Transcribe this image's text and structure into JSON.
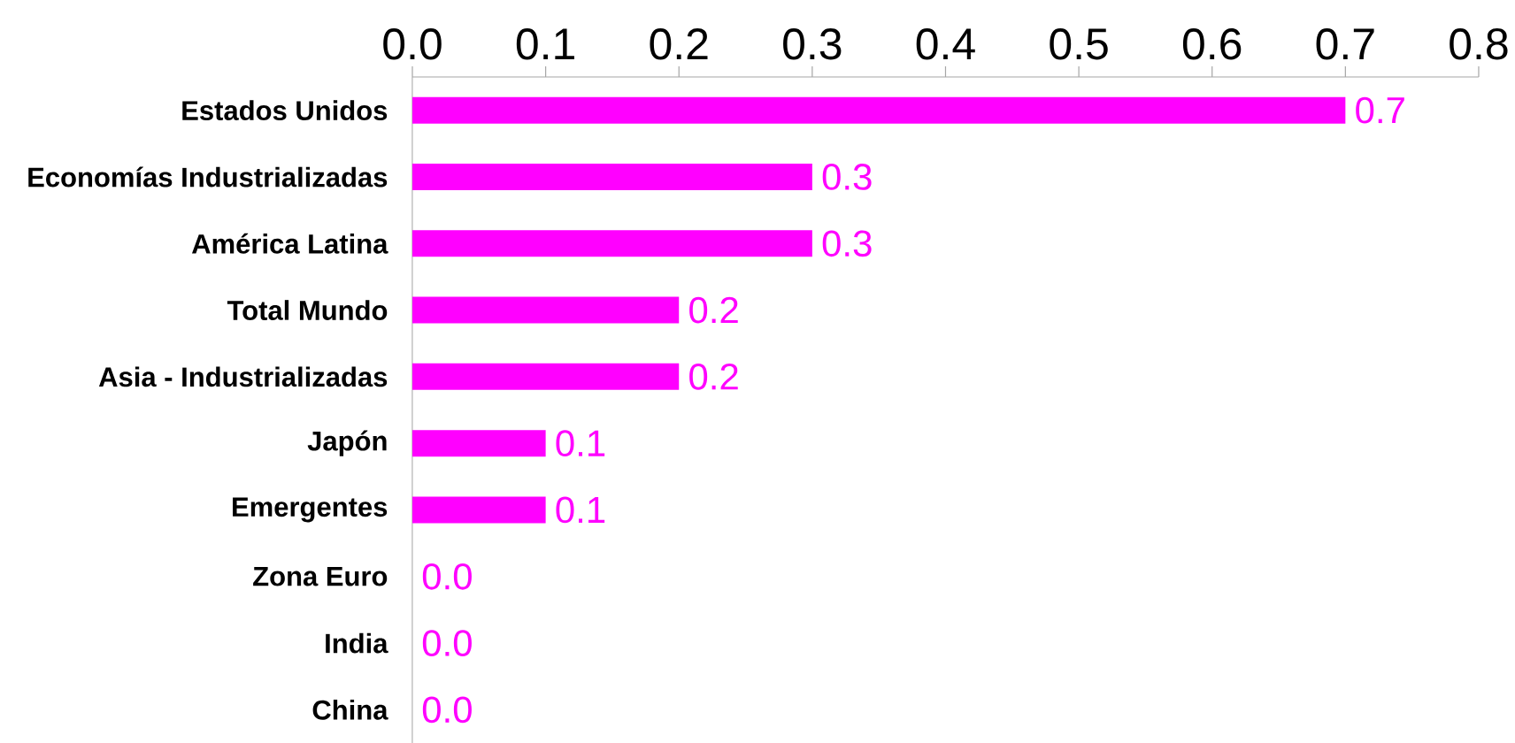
{
  "chart_data": {
    "type": "bar",
    "orientation": "horizontal",
    "categories": [
      "Estados Unidos",
      "Economías Industrializadas",
      "América Latina",
      "Total Mundo",
      "Asia - Industrializadas",
      "Japón",
      "Emergentes",
      "Zona Euro",
      "India",
      "China"
    ],
    "values": [
      0.7,
      0.3,
      0.3,
      0.2,
      0.2,
      0.1,
      0.1,
      0.0,
      0.0,
      0.0
    ],
    "value_labels": [
      "0.7",
      "0.3",
      "0.3",
      "0.2",
      "0.2",
      "0.1",
      "0.1",
      "0.0",
      "0.0",
      "0.0"
    ],
    "color": "#ff00ff",
    "xlim": [
      0,
      0.8
    ],
    "xticks": [
      {
        "value": 0,
        "label": "0.0"
      },
      {
        "value": 0.1,
        "label": "0.1"
      },
      {
        "value": 0.2,
        "label": "0.2"
      },
      {
        "value": 0.3,
        "label": "0.3"
      },
      {
        "value": 0.4,
        "label": "0.4"
      },
      {
        "value": 0.5,
        "label": "0.5"
      },
      {
        "value": 0.6,
        "label": "0.6"
      },
      {
        "value": 0.7,
        "label": "0.7"
      },
      {
        "value": 0.8,
        "label": "0.8"
      }
    ]
  }
}
